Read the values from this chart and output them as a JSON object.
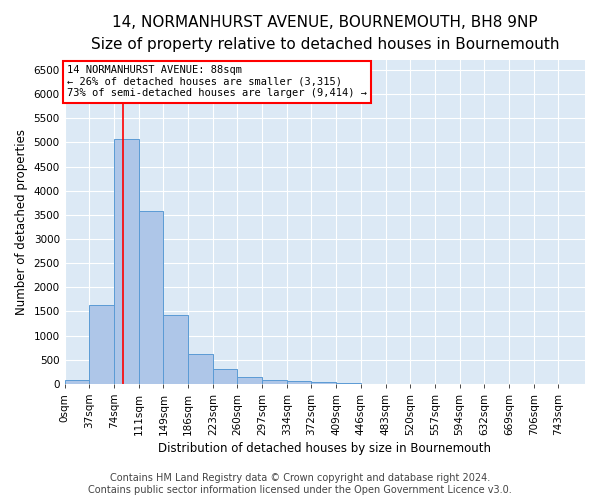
{
  "title": "14, NORMANHURST AVENUE, BOURNEMOUTH, BH8 9NP",
  "subtitle": "Size of property relative to detached houses in Bournemouth",
  "xlabel": "Distribution of detached houses by size in Bournemouth",
  "ylabel": "Number of detached properties",
  "footer_line1": "Contains HM Land Registry data © Crown copyright and database right 2024.",
  "footer_line2": "Contains public sector information licensed under the Open Government Licence v3.0.",
  "bin_labels": [
    "0sqm",
    "37sqm",
    "74sqm",
    "111sqm",
    "149sqm",
    "186sqm",
    "223sqm",
    "260sqm",
    "297sqm",
    "334sqm",
    "372sqm",
    "409sqm",
    "446sqm",
    "483sqm",
    "520sqm",
    "557sqm",
    "594sqm",
    "632sqm",
    "669sqm",
    "706sqm",
    "743sqm"
  ],
  "bar_values": [
    75,
    1640,
    5080,
    3590,
    1420,
    620,
    305,
    145,
    80,
    55,
    35,
    25,
    0,
    0,
    0,
    0,
    0,
    0,
    0,
    0
  ],
  "bar_color": "#aec6e8",
  "bar_edgecolor": "#5b9bd5",
  "vline_x": 88,
  "vline_color": "red",
  "annotation_text": "14 NORMANHURST AVENUE: 88sqm\n← 26% of detached houses are smaller (3,315)\n73% of semi-detached houses are larger (9,414) →",
  "annotation_box_color": "white",
  "annotation_box_edgecolor": "red",
  "ylim": [
    0,
    6700
  ],
  "xlim_max": 743,
  "bin_width": 37,
  "plot_bg_color": "#dce9f5",
  "fig_bg_color": "#ffffff",
  "grid_color": "white",
  "title_fontsize": 11,
  "subtitle_fontsize": 9,
  "axis_label_fontsize": 8.5,
  "tick_fontsize": 7.5,
  "footer_fontsize": 7,
  "yticks": [
    0,
    500,
    1000,
    1500,
    2000,
    2500,
    3000,
    3500,
    4000,
    4500,
    5000,
    5500,
    6000,
    6500
  ]
}
